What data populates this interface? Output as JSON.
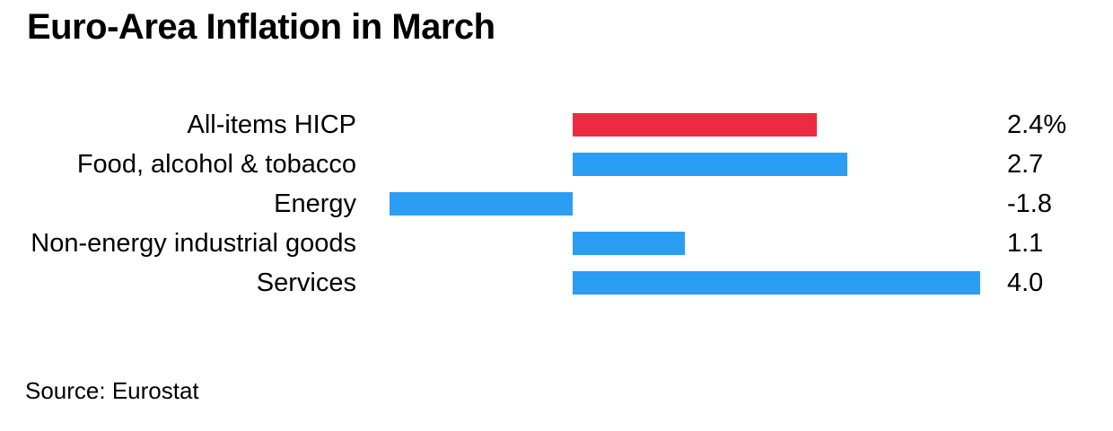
{
  "page": {
    "background": "#ffffff",
    "text_color": "#000000",
    "source_note": "Source: Eurostat"
  },
  "chart_data": {
    "type": "bar",
    "orientation": "horizontal",
    "title": "Euro-Area Inflation in March",
    "categories": [
      "All-items HICP",
      "Food, alcohol & tobacco",
      "Energy",
      "Non-energy industrial goods",
      "Services"
    ],
    "values": [
      2.4,
      2.7,
      -1.8,
      1.1,
      4.0
    ],
    "value_labels": [
      "2.4%",
      "2.7",
      "-1.8",
      "1.1",
      "4.0"
    ],
    "unit": "%",
    "bar_colors": [
      "#ec2b43",
      "#2b9df3",
      "#2b9df3",
      "#2b9df3",
      "#2b9df3"
    ],
    "highlight_color": "#ec2b43",
    "base_color": "#2b9df3",
    "baseline": 0,
    "xlim": [
      -1.8,
      4.0
    ],
    "grid": false,
    "legend": null,
    "source": "Source: Eurostat"
  }
}
